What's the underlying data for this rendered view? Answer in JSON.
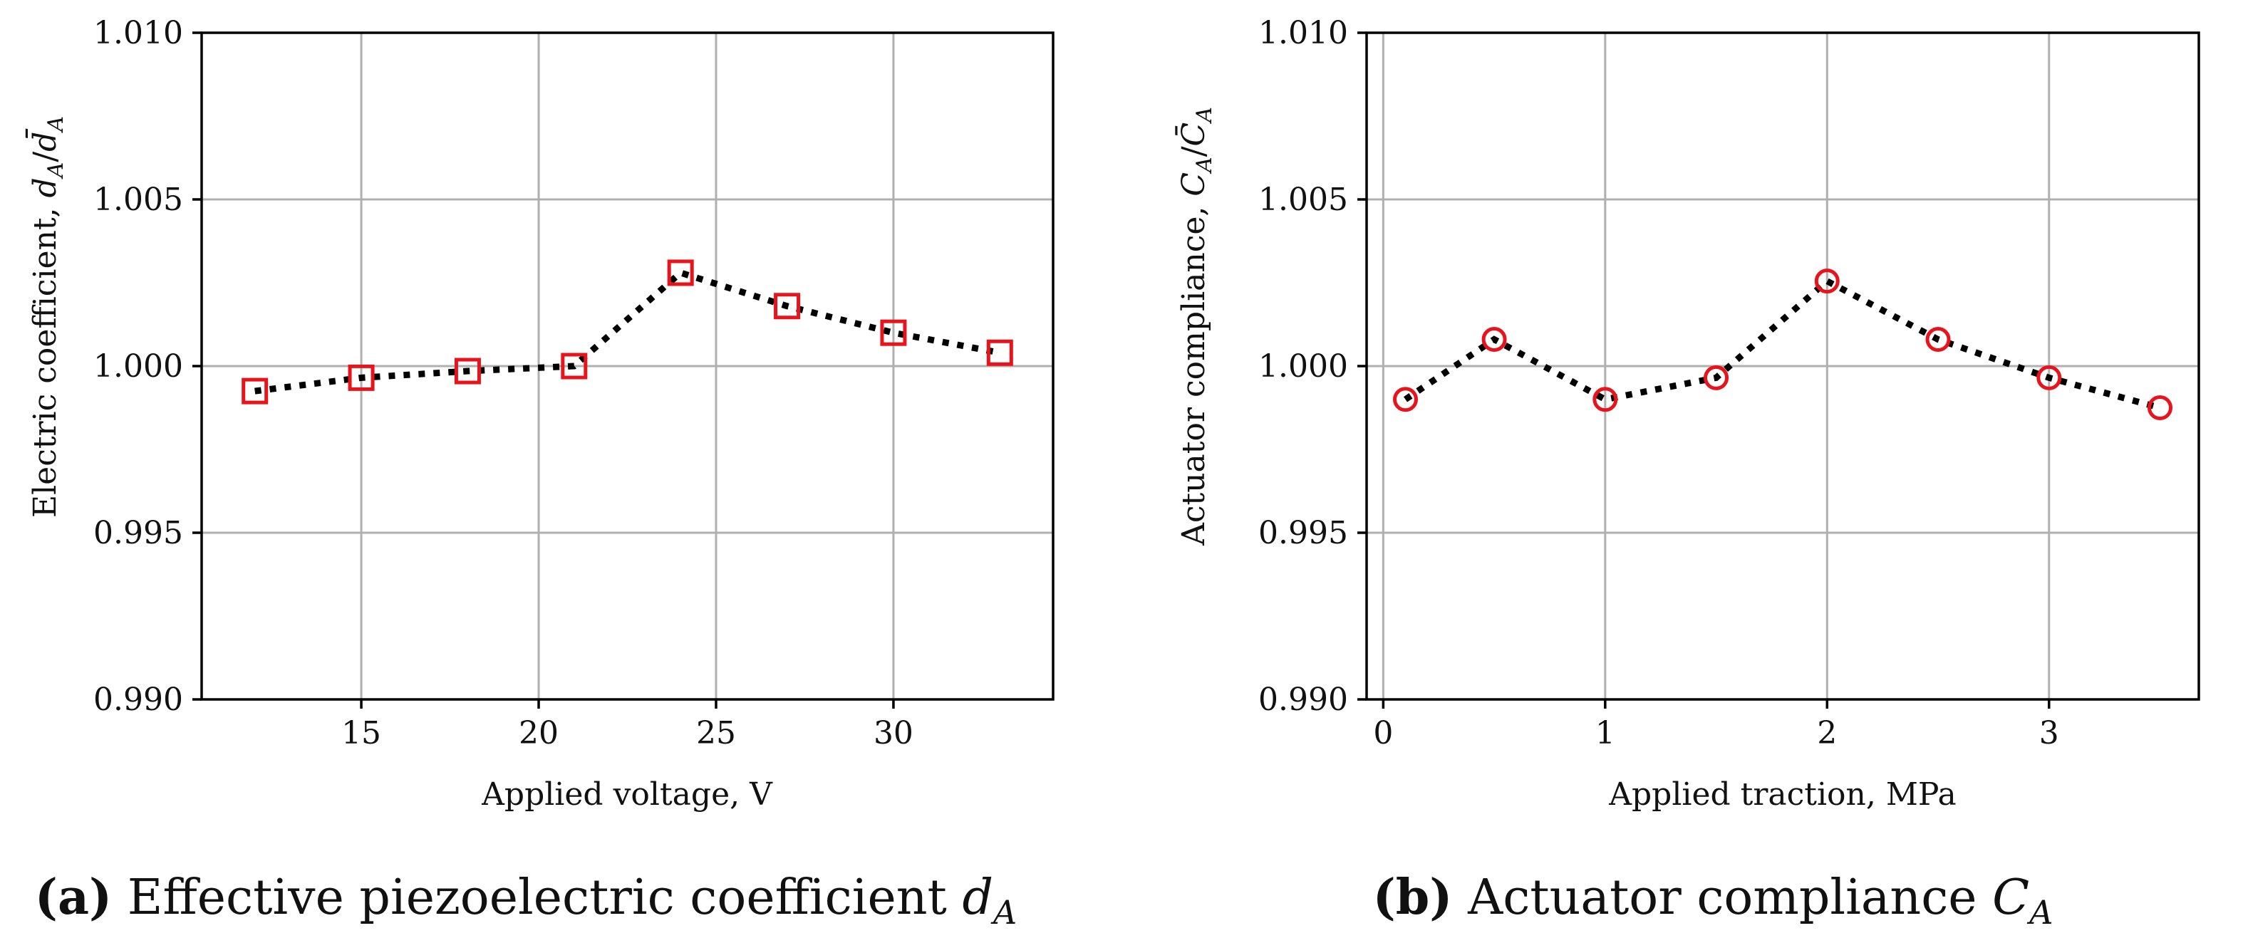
{
  "chart_data": [
    {
      "type": "line",
      "panel_letter": "(a)",
      "caption_text": " Effective piezoelectric coefficient ",
      "caption_symbol": "d",
      "caption_subscript": "A",
      "xlabel": "Applied voltage, V",
      "ylabel_text": "Electric coefficient, ",
      "ylabel_math": "d",
      "ylabel_sub": "A",
      "ylabel_sep": "/",
      "ylabel_math2": "d̄",
      "ylabel_sub2": "A",
      "xlim": [
        10.5,
        34.5
      ],
      "ylim": [
        0.99,
        1.01
      ],
      "xticks": [
        15,
        20,
        25,
        30
      ],
      "xtick_labels": [
        "15",
        "20",
        "25",
        "30"
      ],
      "yticks": [
        0.99,
        0.995,
        1.0,
        1.005,
        1.01
      ],
      "ytick_labels": [
        "0.990",
        "0.995",
        "1.000",
        "1.005",
        "1.010"
      ],
      "grid": true,
      "marker": "square",
      "marker_color": "#e8141c",
      "line_color": "#000000",
      "x": [
        12,
        15,
        18,
        21,
        24,
        27,
        30,
        33
      ],
      "y": [
        0.99925,
        0.99965,
        0.99985,
        1.0,
        1.0028,
        1.0018,
        1.001,
        1.0004
      ]
    },
    {
      "type": "line",
      "panel_letter": "(b)",
      "caption_text": " Actuator compliance ",
      "caption_symbol": "C",
      "caption_subscript": "A",
      "xlabel": "Applied traction, MPa",
      "ylabel_text": "Actuator compliance, ",
      "ylabel_math": "C",
      "ylabel_sub": "A",
      "ylabel_sep": "/",
      "ylabel_math2": "C̄",
      "ylabel_sub2": "A",
      "xlim": [
        -0.075,
        3.675
      ],
      "ylim": [
        0.99,
        1.01
      ],
      "xticks": [
        0,
        1,
        2,
        3
      ],
      "xtick_labels": [
        "0",
        "1",
        "2",
        "3"
      ],
      "yticks": [
        0.99,
        0.995,
        1.0,
        1.005,
        1.01
      ],
      "ytick_labels": [
        "0.990",
        "0.995",
        "1.000",
        "1.005",
        "1.010"
      ],
      "grid": true,
      "marker": "circle",
      "marker_color": "#e8141c",
      "line_color": "#000000",
      "x": [
        0.1,
        0.5,
        1.0,
        1.5,
        2.0,
        2.5,
        3.0,
        3.5
      ],
      "y": [
        0.999,
        1.0008,
        0.999,
        0.99965,
        1.00255,
        1.0008,
        0.99965,
        0.99875
      ]
    }
  ]
}
